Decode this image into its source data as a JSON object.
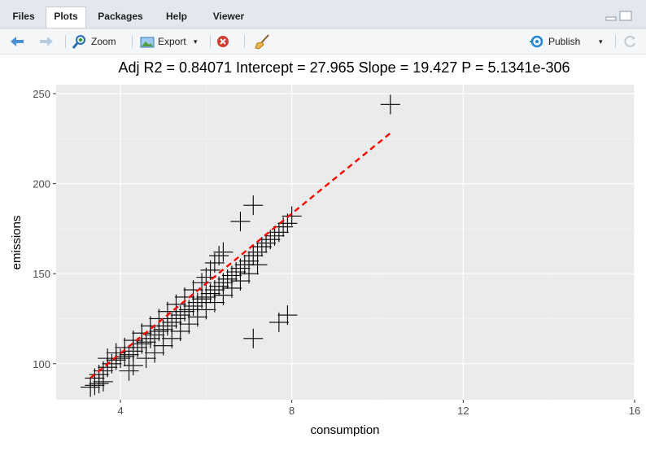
{
  "tabs": [
    {
      "label": "Files",
      "active": false
    },
    {
      "label": "Plots",
      "active": true
    },
    {
      "label": "Packages",
      "active": false
    },
    {
      "label": "Help",
      "active": false
    },
    {
      "label": "Viewer",
      "active": false
    }
  ],
  "toolbar": {
    "zoom_label": "Zoom",
    "export_label": "Export",
    "publish_label": "Publish"
  },
  "chart_data": {
    "type": "scatter",
    "title": "Adj R2 =  0.84071 Intercept = 27.965  Slope = 19.427  P = 5.1341e-306",
    "xlabel": "consumption",
    "ylabel": "emissions",
    "xlim": [
      2.5,
      16
    ],
    "ylim": [
      80,
      255
    ],
    "x_ticks": [
      4,
      8,
      12,
      16
    ],
    "y_ticks": [
      100,
      150,
      200,
      250
    ],
    "grid": true,
    "background": "#ebebeb",
    "marker": "+",
    "marker_color": "#000000",
    "fit_line": {
      "style": "dashed",
      "color": "#ff0000",
      "x": [
        3.3,
        10.3
      ],
      "intercept": 27.965,
      "slope": 19.427
    },
    "points": [
      [
        3.3,
        87
      ],
      [
        3.4,
        88
      ],
      [
        3.5,
        89
      ],
      [
        3.6,
        90
      ],
      [
        3.4,
        92
      ],
      [
        3.5,
        94
      ],
      [
        3.6,
        96
      ],
      [
        3.7,
        98
      ],
      [
        3.8,
        100
      ],
      [
        3.9,
        102
      ],
      [
        4.0,
        103
      ],
      [
        4.1,
        104
      ],
      [
        4.2,
        105
      ],
      [
        4.3,
        107
      ],
      [
        4.4,
        109
      ],
      [
        4.5,
        111
      ],
      [
        4.6,
        112
      ],
      [
        4.7,
        114
      ],
      [
        4.8,
        116
      ],
      [
        4.9,
        118
      ],
      [
        5.0,
        119
      ],
      [
        5.1,
        121
      ],
      [
        5.2,
        123
      ],
      [
        5.3,
        125
      ],
      [
        5.4,
        127
      ],
      [
        5.5,
        129
      ],
      [
        5.6,
        130
      ],
      [
        5.7,
        132
      ],
      [
        5.8,
        134
      ],
      [
        5.9,
        136
      ],
      [
        6.0,
        137
      ],
      [
        6.1,
        139
      ],
      [
        6.2,
        141
      ],
      [
        6.3,
        143
      ],
      [
        6.4,
        145
      ],
      [
        6.5,
        147
      ],
      [
        6.6,
        149
      ],
      [
        6.7,
        151
      ],
      [
        6.8,
        153
      ],
      [
        6.9,
        155
      ],
      [
        7.0,
        157
      ],
      [
        7.1,
        160
      ],
      [
        7.2,
        162
      ],
      [
        7.3,
        165
      ],
      [
        7.4,
        167
      ],
      [
        7.5,
        169
      ],
      [
        7.6,
        171
      ],
      [
        7.7,
        173
      ],
      [
        7.8,
        176
      ],
      [
        7.9,
        178
      ],
      [
        8.0,
        182
      ],
      [
        3.7,
        103
      ],
      [
        3.9,
        106
      ],
      [
        4.1,
        109
      ],
      [
        4.3,
        113
      ],
      [
        4.5,
        117
      ],
      [
        4.7,
        121
      ],
      [
        4.9,
        125
      ],
      [
        5.1,
        129
      ],
      [
        5.3,
        133
      ],
      [
        5.5,
        137
      ],
      [
        5.7,
        141
      ],
      [
        5.9,
        145
      ],
      [
        6.0,
        148
      ],
      [
        6.1,
        152
      ],
      [
        6.2,
        156
      ],
      [
        6.3,
        160
      ],
      [
        6.4,
        162
      ],
      [
        4.2,
        96
      ],
      [
        4.3,
        99
      ],
      [
        4.6,
        103
      ],
      [
        4.8,
        106
      ],
      [
        5.0,
        110
      ],
      [
        5.2,
        114
      ],
      [
        5.4,
        118
      ],
      [
        5.6,
        122
      ],
      [
        5.8,
        126
      ],
      [
        6.0,
        130
      ],
      [
        6.2,
        134
      ],
      [
        6.4,
        138
      ],
      [
        6.6,
        142
      ],
      [
        6.8,
        146
      ],
      [
        7.0,
        150
      ],
      [
        7.2,
        155
      ],
      [
        6.8,
        179
      ],
      [
        7.1,
        188
      ],
      [
        7.1,
        114
      ],
      [
        7.7,
        123
      ],
      [
        7.9,
        127
      ],
      [
        10.3,
        244
      ]
    ]
  }
}
